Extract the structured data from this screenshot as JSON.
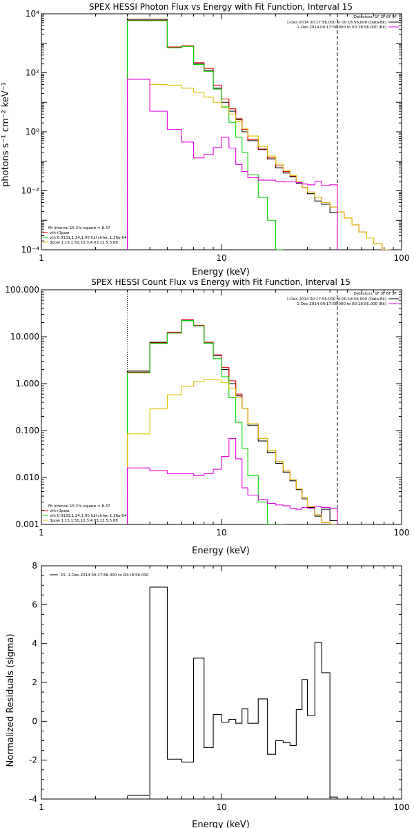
{
  "chart_data": [
    {
      "type": "line",
      "title": "SPEX HESSI Photon Flux vs Energy with Fit Function, Interval 15",
      "xlabel": "Energy (keV)",
      "ylabel": "photons s⁻¹ cm⁻² keV⁻¹",
      "xscale": "log",
      "yscale": "log",
      "xlim": [
        1,
        100
      ],
      "ylim": [
        0.0001,
        10000
      ],
      "x_ticks": [
        "1",
        "10",
        "100"
      ],
      "y_ticks": [
        "10⁻⁴",
        "10⁻²",
        "10⁰",
        "10²",
        "10⁴"
      ],
      "legend_upper": {
        "position": "top-right",
        "header": "Detectors: 1F 3F 6F 9F",
        "entries": [
          {
            "label": "1-Dec-2014 00:17:56.000 to 00:18:56.000 (Data-Bk)",
            "color": "#000000"
          },
          {
            "label": "1-Dec-2014 00:17:56.000 to 00:18:56.000 (Bk)",
            "color": "#e000e0"
          }
        ]
      },
      "legend_lower": {
        "position": "bottom-left",
        "header": "Fit Interval 15   Chi-square = 8.37",
        "entries": [
          {
            "label": "vth+3pow",
            "color": "#e00000"
          },
          {
            "label": "vth 0.0131,1.24,1.00  full chfan 1.26e-04",
            "color": "#00d000"
          },
          {
            "label": "3pow 1.15,1.50,10.3,4.03,12.5,5.88",
            "color": "#e0c000"
          }
        ]
      },
      "vlines": [
        {
          "x": 3.0,
          "style": "dotted"
        },
        {
          "x": 44.0,
          "style": "dashed"
        }
      ],
      "series": [
        {
          "name": "1-Dec-2014 00:17:56.000 to 00:18:56.000 (Data-Bk)",
          "color": "#000000",
          "edges": [
            3,
            4,
            5,
            6,
            7,
            8,
            9,
            10,
            11,
            12,
            13,
            14,
            16,
            18,
            20,
            22,
            24,
            26,
            28,
            30,
            33,
            36,
            40,
            44
          ],
          "values": [
            6500,
            6500,
            700,
            800,
            200,
            120,
            30,
            10,
            5,
            2.6,
            1.0,
            0.5,
            0.25,
            0.12,
            0.06,
            0.04,
            0.03,
            0.018,
            0.013,
            0.008,
            0.0045,
            0.0035,
            0.0018
          ]
        },
        {
          "name": "vth+3pow",
          "color": "#e00000",
          "edges": [
            3,
            4,
            5,
            6,
            7,
            8,
            9,
            10,
            11,
            12,
            13,
            14,
            16,
            18,
            20,
            22,
            24,
            26,
            28,
            30,
            33,
            36,
            40,
            44,
            48,
            53,
            58,
            64,
            70,
            78,
            86
          ],
          "values": [
            6000,
            6000,
            750,
            820,
            220,
            140,
            38,
            13,
            6,
            2.8,
            1.2,
            0.55,
            0.26,
            0.13,
            0.07,
            0.045,
            0.032,
            0.02,
            0.013,
            0.009,
            0.006,
            0.004,
            0.0028,
            0.0019,
            0.0012,
            0.0007,
            0.0004,
            0.00025,
            0.00016,
            0.0001
          ]
        },
        {
          "name": "vth",
          "color": "#00d000",
          "edges": [
            3,
            4,
            5,
            6,
            7,
            8,
            9,
            10,
            11,
            12,
            13,
            14,
            16,
            18,
            20,
            22
          ],
          "values": [
            5800,
            5800,
            700,
            780,
            190,
            110,
            28,
            7,
            2.1,
            0.65,
            0.2,
            0.035,
            0.006,
            0.001,
            0.0001
          ]
        },
        {
          "name": "3pow",
          "color": "#e0c000",
          "edges": [
            3,
            4,
            5,
            6,
            7,
            8,
            9,
            10,
            11,
            12,
            13,
            14,
            16,
            18,
            20,
            22,
            24,
            26,
            28,
            30,
            33,
            36,
            40,
            44,
            48,
            53,
            58,
            64,
            70,
            78,
            86
          ],
          "values": [
            60,
            40,
            38,
            30,
            22,
            15,
            10,
            6.5,
            4,
            2.2,
            1.3,
            0.72,
            0.32,
            0.15,
            0.08,
            0.05,
            0.033,
            0.02,
            0.013,
            0.009,
            0.006,
            0.004,
            0.0028,
            0.0019,
            0.0012,
            0.0007,
            0.0004,
            0.00025,
            0.00016,
            0.0001
          ]
        },
        {
          "name": "1-Dec-2014 00:17:56.000 to 00:18:56.000 (Bk)",
          "color": "#e000e0",
          "edges": [
            3,
            4,
            5,
            6,
            7,
            8,
            9,
            10,
            11,
            12,
            13,
            14,
            16,
            18,
            20,
            22,
            24,
            26,
            28,
            30,
            33,
            36,
            40,
            44
          ],
          "values": [
            60,
            5,
            1.2,
            0.45,
            0.13,
            0.17,
            0.29,
            0.65,
            0.28,
            0.078,
            0.045,
            0.028,
            0.023,
            0.023,
            0.021,
            0.02,
            0.02,
            0.019,
            0.017,
            0.016,
            0.021,
            0.015,
            0.016
          ]
        }
      ]
    },
    {
      "type": "line",
      "title": "SPEX HESSI Count Flux vs Energy with Fit Function, Interval 15",
      "xlabel": "Energy (keV)",
      "ylabel": "",
      "xscale": "log",
      "yscale": "log",
      "xlim": [
        1,
        100
      ],
      "ylim": [
        0.001,
        100
      ],
      "x_ticks": [
        "1",
        "10",
        "100"
      ],
      "y_ticks": [
        "0.001",
        "0.010",
        "0.100",
        "1.000",
        "10.000",
        "100.000"
      ],
      "legend_upper": {
        "position": "top-right",
        "header": "Detectors: 1F 3F 6F 9F",
        "entries": [
          {
            "label": "1-Dec-2014 00:17:56.000 to 00:18:56.000 (Data-Bk)",
            "color": "#000000"
          },
          {
            "label": "1-Dec-2014 00:17:56.000 to 00:18:56.000 (Bk)",
            "color": "#e000e0"
          }
        ]
      },
      "legend_lower": {
        "position": "bottom-left",
        "header": "Fit Interval 15   Chi-square = 8.37",
        "entries": [
          {
            "label": "vth+3pow",
            "color": "#e00000"
          },
          {
            "label": "vth 0.0131,1.24,1.00  full chfan 1.26e-04",
            "color": "#00d000"
          },
          {
            "label": "3pow 1.15,1.50,10.3,4.03,12.5,5.88",
            "color": "#e0c000"
          }
        ]
      },
      "vlines": [
        {
          "x": 3.0,
          "style": "dotted"
        },
        {
          "x": 44.0,
          "style": "dashed"
        }
      ],
      "series": [
        {
          "name": "1-Dec-2014 00:17:56.000 to 00:18:56.000 (Data-Bk)",
          "color": "#000000",
          "edges": [
            3,
            4,
            5,
            6,
            7,
            8,
            9,
            10,
            11,
            12,
            13,
            14,
            16,
            18,
            20,
            22,
            24,
            26,
            28,
            30,
            33,
            36,
            40,
            44
          ],
          "values": [
            1.85,
            7.6,
            12,
            22,
            17,
            7.3,
            4.0,
            2.0,
            1.0,
            0.55,
            0.3,
            0.13,
            0.06,
            0.034,
            0.02,
            0.013,
            0.0085,
            0.0055,
            0.0035,
            0.0023,
            0.0015,
            0.0021,
            0.0012
          ]
        },
        {
          "name": "vth+3pow",
          "color": "#e00000",
          "edges": [
            3,
            4,
            5,
            6,
            7,
            8,
            9,
            10,
            11,
            12,
            13,
            14,
            16,
            18,
            20,
            22,
            24,
            26,
            28,
            30,
            33,
            36,
            40,
            44
          ],
          "values": [
            1.75,
            7.4,
            12.5,
            23,
            17.5,
            7.6,
            4.1,
            2.2,
            1.15,
            0.6,
            0.3,
            0.14,
            0.068,
            0.038,
            0.022,
            0.014,
            0.009,
            0.0057,
            0.0037,
            0.0024,
            0.0016,
            0.0011,
            0.00095
          ]
        },
        {
          "name": "vth",
          "color": "#00d000",
          "edges": [
            3,
            4,
            5,
            6,
            7,
            8,
            9,
            10,
            11,
            12,
            13,
            14,
            16,
            18,
            20,
            22
          ],
          "values": [
            1.7,
            7.2,
            12,
            22,
            17,
            7.3,
            3.4,
            1.4,
            0.5,
            0.15,
            0.042,
            0.011,
            0.003,
            0.001,
            0.0005
          ]
        },
        {
          "name": "3pow",
          "color": "#e0c000",
          "edges": [
            3,
            4,
            5,
            6,
            7,
            8,
            9,
            10,
            11,
            12,
            13,
            14,
            16,
            18,
            20,
            22,
            24,
            26,
            28,
            30,
            33,
            36,
            40,
            44
          ],
          "values": [
            0.085,
            0.29,
            0.58,
            0.88,
            1.1,
            1.22,
            1.2,
            1.05,
            0.78,
            0.5,
            0.3,
            0.14,
            0.068,
            0.038,
            0.022,
            0.014,
            0.009,
            0.0057,
            0.0037,
            0.0024,
            0.0016,
            0.0011,
            0.0008
          ]
        },
        {
          "name": "1-Dec-2014 00:17:56.000 to 00:18:56.000 (Bk)",
          "color": "#e000e0",
          "edges": [
            3,
            4,
            5,
            6,
            7,
            8,
            9,
            10,
            11,
            12,
            13,
            14,
            16,
            18,
            20,
            22,
            24,
            26,
            28,
            30,
            33,
            36,
            40,
            44
          ],
          "values": [
            0.016,
            0.014,
            0.012,
            0.012,
            0.011,
            0.012,
            0.015,
            0.028,
            0.068,
            0.025,
            0.006,
            0.0042,
            0.0034,
            0.0028,
            0.0026,
            0.0025,
            0.0022,
            0.0021,
            0.0023,
            0.0022,
            0.0024,
            0.0023,
            0.0022
          ]
        }
      ]
    },
    {
      "type": "line",
      "title": "",
      "xlabel": "Energy (keV)",
      "ylabel": "Normalized Residuals (sigma)",
      "xscale": "log",
      "yscale": "linear",
      "xlim": [
        1,
        100
      ],
      "ylim": [
        -4,
        8
      ],
      "x_ticks": [
        "1",
        "10",
        "100"
      ],
      "y_ticks": [
        "-4",
        "-2",
        "0",
        "2",
        "4",
        "6",
        "8"
      ],
      "legend": {
        "position": "top-left",
        "entries": [
          {
            "label": "15.  1-Dec-2014 00:17:56.000 to 00:18:56.000",
            "color": "#000000"
          }
        ]
      },
      "series": [
        {
          "name": "15.  1-Dec-2014 00:17:56.000 to 00:18:56.000",
          "color": "#000000",
          "edges": [
            3,
            4,
            5,
            6,
            7,
            8,
            9,
            10,
            11,
            12,
            13,
            14,
            16,
            18,
            20,
            22,
            24,
            26,
            28,
            30,
            33,
            36,
            40,
            44
          ],
          "values": [
            -3.8,
            6.9,
            -1.95,
            -2.1,
            3.25,
            -1.35,
            0.35,
            -0.05,
            0.1,
            -0.1,
            0.65,
            -0.1,
            1.15,
            -1.7,
            -1.0,
            -1.1,
            -1.25,
            0.6,
            2.15,
            0.3,
            4.05,
            2.5,
            -3.9
          ]
        }
      ]
    }
  ]
}
